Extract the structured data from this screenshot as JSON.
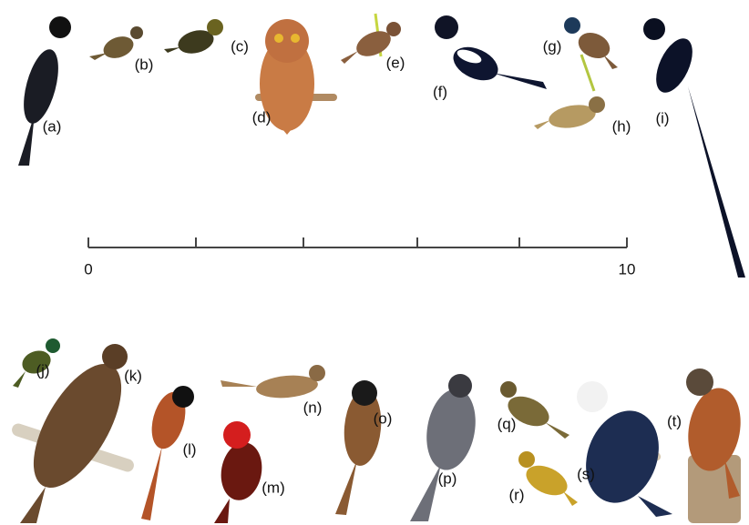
{
  "labels": [
    "(a)",
    "(b)",
    "(c)",
    "(d)",
    "(e)",
    "(f)",
    "(g)",
    "(h)",
    "(i)",
    "(j)",
    "(k)",
    "(l)",
    "(m)",
    "(n)",
    "(o)",
    "(p)",
    "(q)",
    "(r)",
    "(s)",
    "(t)"
  ],
  "scale": {
    "start": "0",
    "end": "10"
  }
}
